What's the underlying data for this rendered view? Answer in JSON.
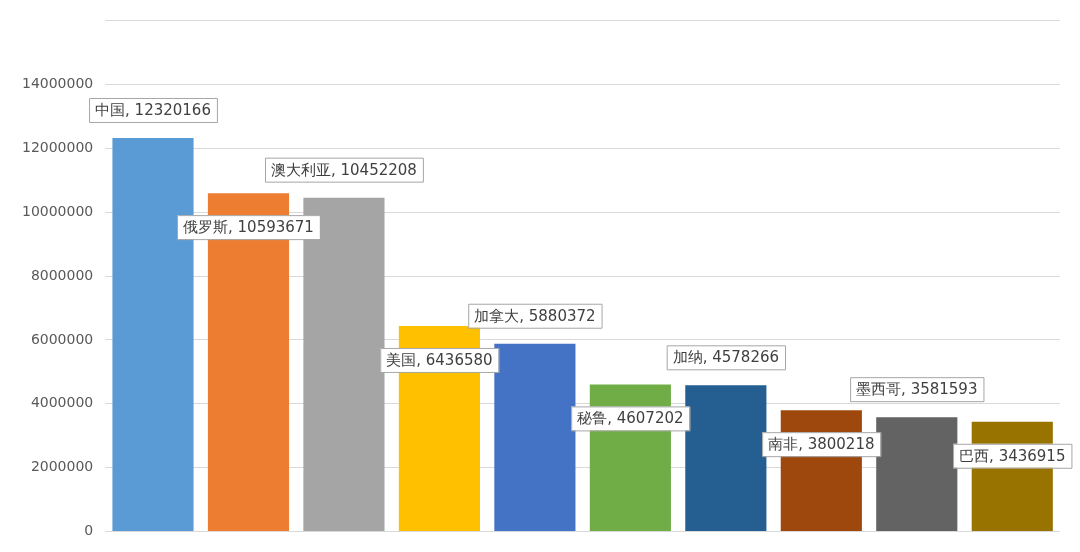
{
  "chart_data": {
    "type": "bar",
    "categories": [
      null,
      null,
      null,
      null,
      null,
      null,
      null,
      null,
      null,
      null
    ],
    "values": [
      12320166,
      10593671,
      10452208,
      6436580,
      5880372,
      4607202,
      4578266,
      3800218,
      3581593,
      3436915
    ],
    "value_labels": [
      "中国, 12320166",
      "俄罗斯, 10593671",
      "澳大利亚, 10452208",
      "美国, 6436580",
      "加拿大, 5880372",
      "秘鲁, 4607202",
      "加纳, 4578266",
      "南非, 3800218",
      "墨西哥, 3581593",
      "巴西, 3436915"
    ],
    "colors": [
      "#5b9bd5",
      "#ed7d31",
      "#a5a5a5",
      "#ffc000",
      "#4472c4",
      "#70ad47",
      "#255e91",
      "#9e480e",
      "#636363",
      "#997300"
    ],
    "ylim": [
      0,
      16000000
    ],
    "yticks": [
      0,
      2000000,
      4000000,
      6000000,
      8000000,
      10000000,
      12000000,
      14000000,
      {
        "value": 16000000,
        "label": null
      }
    ],
    "grid": "y",
    "tick_labels": "y"
  }
}
